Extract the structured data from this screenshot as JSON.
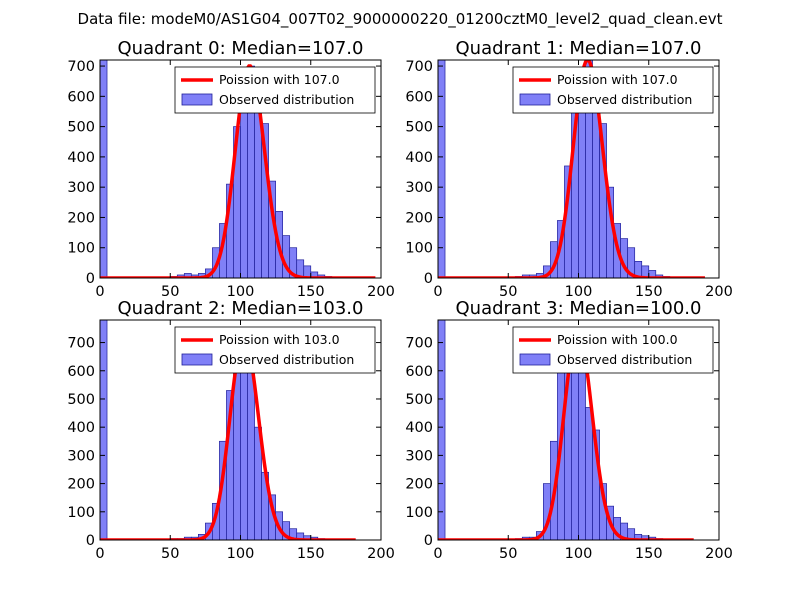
{
  "suptitle": "Data file: modeM0/AS1G04_007T02_9000000220_01200cztM0_level2_quad_clean.evt",
  "colors": {
    "bar_fill": "#8080f7",
    "bar_edge": "#20209a",
    "curve": "#ff0000",
    "axes": "#000000"
  },
  "chart_data": [
    {
      "type": "bar",
      "title": "Quadrant 0: Median=107.0",
      "median": 107.0,
      "xlim": [
        0,
        200
      ],
      "ylim": [
        0,
        720
      ],
      "xticks": [
        0,
        50,
        100,
        150,
        200
      ],
      "yticks": [
        0,
        100,
        200,
        300,
        400,
        500,
        600,
        700
      ],
      "bin_width": 5,
      "legend": [
        "Poission with 107.0",
        "Observed distribution"
      ],
      "curve_x": [
        0,
        196
      ],
      "bins": [
        {
          "x": 0,
          "y": 720
        },
        {
          "x": 5,
          "y": 0
        },
        {
          "x": 10,
          "y": 0
        },
        {
          "x": 15,
          "y": 0
        },
        {
          "x": 20,
          "y": 0
        },
        {
          "x": 25,
          "y": 0
        },
        {
          "x": 30,
          "y": 0
        },
        {
          "x": 35,
          "y": 0
        },
        {
          "x": 40,
          "y": 0
        },
        {
          "x": 45,
          "y": 0
        },
        {
          "x": 50,
          "y": 5
        },
        {
          "x": 55,
          "y": 10
        },
        {
          "x": 60,
          "y": 15
        },
        {
          "x": 65,
          "y": 10
        },
        {
          "x": 70,
          "y": 15
        },
        {
          "x": 75,
          "y": 30
        },
        {
          "x": 80,
          "y": 100
        },
        {
          "x": 85,
          "y": 180
        },
        {
          "x": 90,
          "y": 310
        },
        {
          "x": 95,
          "y": 500
        },
        {
          "x": 100,
          "y": 650
        },
        {
          "x": 105,
          "y": 700
        },
        {
          "x": 110,
          "y": 580
        },
        {
          "x": 115,
          "y": 510
        },
        {
          "x": 120,
          "y": 320
        },
        {
          "x": 125,
          "y": 220
        },
        {
          "x": 130,
          "y": 140
        },
        {
          "x": 135,
          "y": 100
        },
        {
          "x": 140,
          "y": 60
        },
        {
          "x": 145,
          "y": 40
        },
        {
          "x": 150,
          "y": 20
        },
        {
          "x": 155,
          "y": 10
        },
        {
          "x": 160,
          "y": 5
        },
        {
          "x": 165,
          "y": 3
        },
        {
          "x": 170,
          "y": 2
        },
        {
          "x": 175,
          "y": 1
        },
        {
          "x": 180,
          "y": 1
        },
        {
          "x": 185,
          "y": 0
        },
        {
          "x": 190,
          "y": 0
        },
        {
          "x": 195,
          "y": 0
        }
      ]
    },
    {
      "type": "bar",
      "title": "Quadrant 1: Median=107.0",
      "median": 107.0,
      "xlim": [
        0,
        200
      ],
      "ylim": [
        0,
        720
      ],
      "xticks": [
        0,
        50,
        100,
        150,
        200
      ],
      "yticks": [
        0,
        100,
        200,
        300,
        400,
        500,
        600,
        700
      ],
      "bin_width": 5,
      "legend": [
        "Poission with 107.0",
        "Observed distribution"
      ],
      "curve_x": [
        0,
        190
      ],
      "bins": [
        {
          "x": 0,
          "y": 720
        },
        {
          "x": 5,
          "y": 0
        },
        {
          "x": 10,
          "y": 0
        },
        {
          "x": 15,
          "y": 0
        },
        {
          "x": 20,
          "y": 0
        },
        {
          "x": 25,
          "y": 0
        },
        {
          "x": 30,
          "y": 0
        },
        {
          "x": 35,
          "y": 0
        },
        {
          "x": 40,
          "y": 0
        },
        {
          "x": 45,
          "y": 0
        },
        {
          "x": 50,
          "y": 3
        },
        {
          "x": 55,
          "y": 5
        },
        {
          "x": 60,
          "y": 10
        },
        {
          "x": 65,
          "y": 10
        },
        {
          "x": 70,
          "y": 15
        },
        {
          "x": 75,
          "y": 40
        },
        {
          "x": 80,
          "y": 120
        },
        {
          "x": 85,
          "y": 190
        },
        {
          "x": 90,
          "y": 370
        },
        {
          "x": 95,
          "y": 570
        },
        {
          "x": 100,
          "y": 620
        },
        {
          "x": 105,
          "y": 720
        },
        {
          "x": 110,
          "y": 610
        },
        {
          "x": 115,
          "y": 510
        },
        {
          "x": 120,
          "y": 300
        },
        {
          "x": 125,
          "y": 180
        },
        {
          "x": 130,
          "y": 130
        },
        {
          "x": 135,
          "y": 100
        },
        {
          "x": 140,
          "y": 55
        },
        {
          "x": 145,
          "y": 40
        },
        {
          "x": 150,
          "y": 25
        },
        {
          "x": 155,
          "y": 10
        },
        {
          "x": 160,
          "y": 5
        },
        {
          "x": 165,
          "y": 3
        },
        {
          "x": 170,
          "y": 1
        },
        {
          "x": 175,
          "y": 1
        },
        {
          "x": 180,
          "y": 0
        },
        {
          "x": 185,
          "y": 0
        },
        {
          "x": 190,
          "y": 0
        },
        {
          "x": 195,
          "y": 0
        }
      ]
    },
    {
      "type": "bar",
      "title": "Quadrant 2: Median=103.0",
      "median": 103.0,
      "xlim": [
        0,
        200
      ],
      "ylim": [
        0,
        780
      ],
      "xticks": [
        0,
        50,
        100,
        150,
        200
      ],
      "yticks": [
        0,
        100,
        200,
        300,
        400,
        500,
        600,
        700
      ],
      "bin_width": 5,
      "legend": [
        "Poission with 103.0",
        "Observed distribution"
      ],
      "curve_x": [
        0,
        182
      ],
      "bins": [
        {
          "x": 0,
          "y": 780
        },
        {
          "x": 5,
          "y": 0
        },
        {
          "x": 10,
          "y": 0
        },
        {
          "x": 15,
          "y": 0
        },
        {
          "x": 20,
          "y": 0
        },
        {
          "x": 25,
          "y": 0
        },
        {
          "x": 30,
          "y": 0
        },
        {
          "x": 35,
          "y": 0
        },
        {
          "x": 40,
          "y": 0
        },
        {
          "x": 45,
          "y": 0
        },
        {
          "x": 50,
          "y": 5
        },
        {
          "x": 55,
          "y": 5
        },
        {
          "x": 60,
          "y": 10
        },
        {
          "x": 65,
          "y": 10
        },
        {
          "x": 70,
          "y": 20
        },
        {
          "x": 75,
          "y": 60
        },
        {
          "x": 80,
          "y": 130
        },
        {
          "x": 85,
          "y": 350
        },
        {
          "x": 90,
          "y": 530
        },
        {
          "x": 95,
          "y": 710
        },
        {
          "x": 100,
          "y": 720
        },
        {
          "x": 105,
          "y": 610
        },
        {
          "x": 110,
          "y": 400
        },
        {
          "x": 115,
          "y": 240
        },
        {
          "x": 120,
          "y": 160
        },
        {
          "x": 125,
          "y": 100
        },
        {
          "x": 130,
          "y": 65
        },
        {
          "x": 135,
          "y": 40
        },
        {
          "x": 140,
          "y": 25
        },
        {
          "x": 145,
          "y": 15
        },
        {
          "x": 150,
          "y": 10
        },
        {
          "x": 155,
          "y": 5
        },
        {
          "x": 160,
          "y": 3
        },
        {
          "x": 165,
          "y": 2
        },
        {
          "x": 170,
          "y": 1
        },
        {
          "x": 175,
          "y": 1
        },
        {
          "x": 180,
          "y": 0
        },
        {
          "x": 185,
          "y": 0
        },
        {
          "x": 190,
          "y": 0
        },
        {
          "x": 195,
          "y": 0
        }
      ]
    },
    {
      "type": "bar",
      "title": "Quadrant 3: Median=100.0",
      "median": 100.0,
      "xlim": [
        0,
        200
      ],
      "ylim": [
        0,
        780
      ],
      "xticks": [
        0,
        50,
        100,
        150,
        200
      ],
      "yticks": [
        0,
        100,
        200,
        300,
        400,
        500,
        600,
        700
      ],
      "bin_width": 5,
      "legend": [
        "Poission with 100.0",
        "Observed distribution"
      ],
      "curve_x": [
        0,
        182
      ],
      "bins": [
        {
          "x": 0,
          "y": 780
        },
        {
          "x": 5,
          "y": 0
        },
        {
          "x": 10,
          "y": 0
        },
        {
          "x": 15,
          "y": 0
        },
        {
          "x": 20,
          "y": 0
        },
        {
          "x": 25,
          "y": 0
        },
        {
          "x": 30,
          "y": 0
        },
        {
          "x": 35,
          "y": 0
        },
        {
          "x": 40,
          "y": 0
        },
        {
          "x": 45,
          "y": 0
        },
        {
          "x": 50,
          "y": 3
        },
        {
          "x": 55,
          "y": 5
        },
        {
          "x": 60,
          "y": 10
        },
        {
          "x": 65,
          "y": 10
        },
        {
          "x": 70,
          "y": 30
        },
        {
          "x": 75,
          "y": 200
        },
        {
          "x": 80,
          "y": 350
        },
        {
          "x": 85,
          "y": 600
        },
        {
          "x": 90,
          "y": 680
        },
        {
          "x": 95,
          "y": 740
        },
        {
          "x": 100,
          "y": 720
        },
        {
          "x": 105,
          "y": 470
        },
        {
          "x": 110,
          "y": 390
        },
        {
          "x": 115,
          "y": 200
        },
        {
          "x": 120,
          "y": 120
        },
        {
          "x": 125,
          "y": 80
        },
        {
          "x": 130,
          "y": 60
        },
        {
          "x": 135,
          "y": 40
        },
        {
          "x": 140,
          "y": 20
        },
        {
          "x": 145,
          "y": 15
        },
        {
          "x": 150,
          "y": 10
        },
        {
          "x": 155,
          "y": 5
        },
        {
          "x": 160,
          "y": 3
        },
        {
          "x": 165,
          "y": 2
        },
        {
          "x": 170,
          "y": 1
        },
        {
          "x": 175,
          "y": 1
        },
        {
          "x": 180,
          "y": 0
        },
        {
          "x": 185,
          "y": 0
        },
        {
          "x": 190,
          "y": 0
        },
        {
          "x": 195,
          "y": 0
        }
      ]
    }
  ]
}
